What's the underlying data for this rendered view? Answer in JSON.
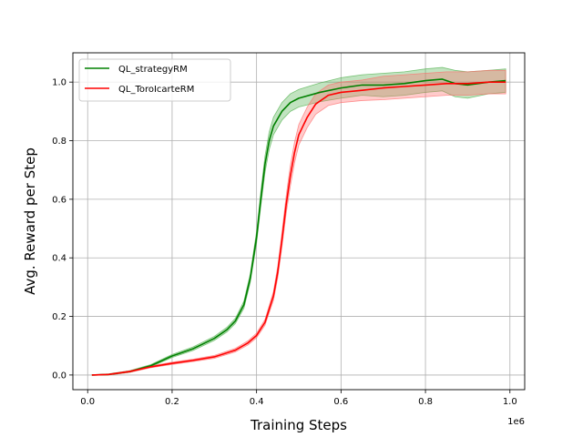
{
  "chart_data": {
    "type": "line",
    "xlabel": "Training Steps",
    "ylabel": "Avg. Reward per Step",
    "x_offset_label": "1e6",
    "xlim": [
      -0.035,
      1.035
    ],
    "ylim": [
      -0.05,
      1.1
    ],
    "xticks": [
      0.0,
      0.2,
      0.4,
      0.6,
      0.8,
      1.0
    ],
    "xtick_labels": [
      "0.0",
      "0.2",
      "0.4",
      "0.6",
      "0.8",
      "1.0"
    ],
    "yticks": [
      0.0,
      0.2,
      0.4,
      0.6,
      0.8,
      1.0
    ],
    "ytick_labels": [
      "0.0",
      "0.2",
      "0.4",
      "0.6",
      "0.8",
      "1.0"
    ],
    "grid": true,
    "legend_position": "upper-left",
    "series": [
      {
        "name": "QL_strategyRM",
        "color": "#008000",
        "band_color": "#4daf4a",
        "points": [
          [
            0.01,
            0.0,
            0.0
          ],
          [
            0.05,
            0.002,
            0.002
          ],
          [
            0.1,
            0.012,
            0.003
          ],
          [
            0.15,
            0.032,
            0.004
          ],
          [
            0.2,
            0.065,
            0.005
          ],
          [
            0.25,
            0.09,
            0.006
          ],
          [
            0.3,
            0.125,
            0.007
          ],
          [
            0.33,
            0.155,
            0.008
          ],
          [
            0.35,
            0.185,
            0.009
          ],
          [
            0.37,
            0.24,
            0.012
          ],
          [
            0.385,
            0.33,
            0.015
          ],
          [
            0.4,
            0.47,
            0.02
          ],
          [
            0.41,
            0.6,
            0.025
          ],
          [
            0.42,
            0.72,
            0.028
          ],
          [
            0.43,
            0.8,
            0.03
          ],
          [
            0.44,
            0.85,
            0.03
          ],
          [
            0.46,
            0.9,
            0.03
          ],
          [
            0.48,
            0.93,
            0.03
          ],
          [
            0.5,
            0.945,
            0.03
          ],
          [
            0.55,
            0.965,
            0.032
          ],
          [
            0.6,
            0.98,
            0.035
          ],
          [
            0.65,
            0.99,
            0.035
          ],
          [
            0.7,
            0.99,
            0.04
          ],
          [
            0.75,
            0.995,
            0.04
          ],
          [
            0.8,
            1.005,
            0.04
          ],
          [
            0.84,
            1.01,
            0.04
          ],
          [
            0.87,
            0.995,
            0.045
          ],
          [
            0.9,
            0.99,
            0.045
          ],
          [
            0.95,
            1.0,
            0.04
          ],
          [
            0.99,
            1.005,
            0.04
          ]
        ]
      },
      {
        "name": "QL_ToroIcarteRM",
        "color": "#ff0000",
        "band_color": "#ff6b6b",
        "points": [
          [
            0.01,
            0.0,
            0.0
          ],
          [
            0.05,
            0.002,
            0.002
          ],
          [
            0.1,
            0.012,
            0.003
          ],
          [
            0.15,
            0.028,
            0.003
          ],
          [
            0.2,
            0.04,
            0.004
          ],
          [
            0.25,
            0.05,
            0.004
          ],
          [
            0.3,
            0.062,
            0.005
          ],
          [
            0.35,
            0.085,
            0.006
          ],
          [
            0.38,
            0.11,
            0.007
          ],
          [
            0.4,
            0.135,
            0.008
          ],
          [
            0.42,
            0.18,
            0.01
          ],
          [
            0.44,
            0.27,
            0.015
          ],
          [
            0.45,
            0.35,
            0.02
          ],
          [
            0.46,
            0.46,
            0.025
          ],
          [
            0.47,
            0.58,
            0.03
          ],
          [
            0.48,
            0.68,
            0.035
          ],
          [
            0.49,
            0.76,
            0.035
          ],
          [
            0.5,
            0.82,
            0.035
          ],
          [
            0.52,
            0.88,
            0.035
          ],
          [
            0.54,
            0.925,
            0.035
          ],
          [
            0.57,
            0.955,
            0.035
          ],
          [
            0.6,
            0.965,
            0.035
          ],
          [
            0.65,
            0.972,
            0.035
          ],
          [
            0.7,
            0.98,
            0.04
          ],
          [
            0.75,
            0.985,
            0.04
          ],
          [
            0.8,
            0.99,
            0.04
          ],
          [
            0.85,
            0.995,
            0.04
          ],
          [
            0.9,
            0.995,
            0.04
          ],
          [
            0.95,
            1.0,
            0.04
          ],
          [
            0.99,
            1.0,
            0.04
          ]
        ]
      }
    ]
  }
}
